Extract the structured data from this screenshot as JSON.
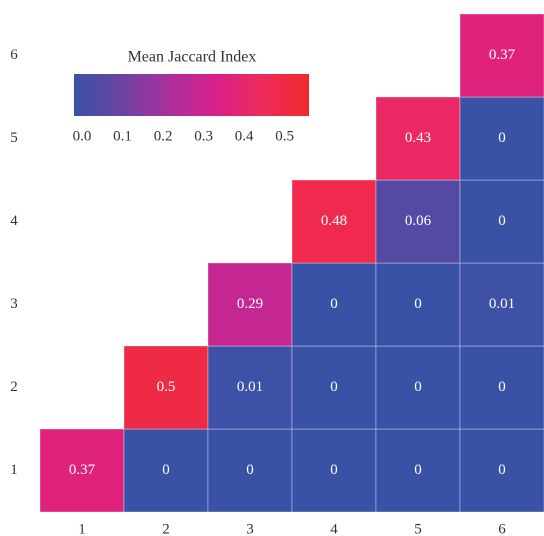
{
  "chart_data": {
    "type": "heatmap",
    "x": [
      1,
      2,
      3,
      4,
      5,
      6
    ],
    "y": [
      1,
      2,
      3,
      4,
      5,
      6
    ],
    "values": [
      [
        0.37,
        0,
        0,
        0,
        0,
        0
      ],
      [
        null,
        0.5,
        0.01,
        0,
        0,
        0
      ],
      [
        null,
        null,
        0.29,
        0,
        0,
        0.01
      ],
      [
        null,
        null,
        null,
        0.48,
        0.06,
        0
      ],
      [
        null,
        null,
        null,
        null,
        0.43,
        0
      ],
      [
        null,
        null,
        null,
        null,
        null,
        0.37
      ]
    ],
    "colorbar_title": "Mean Jaccard Index",
    "clim": [
      0,
      0.56
    ],
    "colorbar_ticks": [
      {
        "value": 0,
        "label": "0.0"
      },
      0.1,
      0.2,
      0.3,
      0.4,
      0.5
    ],
    "colormap": [
      "#3a52a6",
      "#6a43a3",
      "#a8309c",
      "#d8208a",
      "#ee2a5c",
      "#f02a2a"
    ]
  }
}
